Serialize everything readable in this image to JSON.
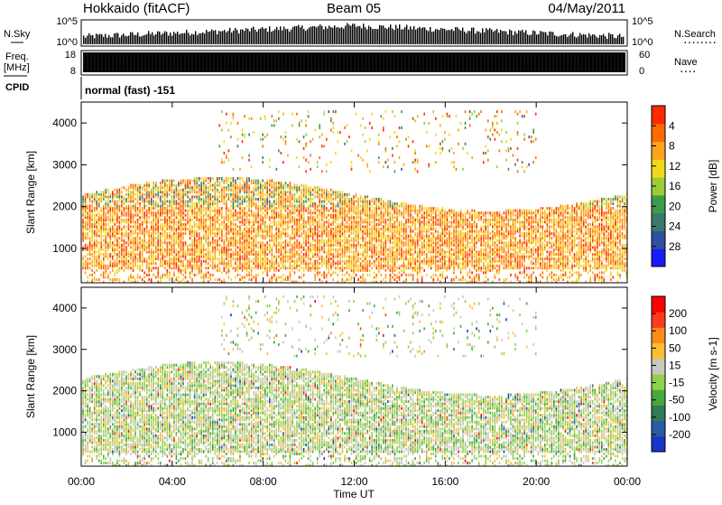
{
  "header": {
    "radar_title": "Hokkaido (fitACF)",
    "beam": "Beam 05",
    "date": "04/May/2011"
  },
  "side_labels": {
    "nsky": "N.Sky",
    "freq_line1": "Freq.",
    "freq_line2": "[MHz]",
    "cpid": "CPID",
    "nsearch": "N.Search",
    "nsearch_dots": "........",
    "nave": "Nave",
    "nave_dots": "...."
  },
  "noise_panel": {
    "left_ticks": [
      "10^5",
      "10^0"
    ],
    "right_ticks": [
      "10^5",
      "10^0"
    ]
  },
  "freq_panel": {
    "left_ticks": [
      "18",
      "8"
    ],
    "right_ticks": [
      "60",
      "0"
    ]
  },
  "cpid_text": "normal (fast) -151",
  "chart_data": [
    {
      "type": "heatmap",
      "name": "power",
      "ylabel": "Slant Range [km]",
      "xlabel": "Time UT",
      "x_ticks": [
        "00:00",
        "04:00",
        "08:00",
        "12:00",
        "16:00",
        "20:00",
        "00:00"
      ],
      "y_ticks": [
        "1000",
        "2000",
        "3000",
        "4000"
      ],
      "xlim_hours": [
        0,
        24
      ],
      "ylim_km": [
        180,
        4500
      ],
      "colorbar": {
        "label": "Power [dB]",
        "ticks": [
          "4",
          "8",
          "12",
          "16",
          "20",
          "24",
          "28"
        ],
        "colors": [
          "#1a1aff",
          "#2f4fa0",
          "#3b7a6a",
          "#3f9a4a",
          "#9ccc33",
          "#f0d81a",
          "#ffa41a",
          "#ff6a00",
          "#ff2a00"
        ]
      }
    },
    {
      "type": "heatmap",
      "name": "velocity",
      "ylabel": "Slant Range [km]",
      "xlabel": "Time UT",
      "x_ticks": [
        "00:00",
        "04:00",
        "08:00",
        "12:00",
        "16:00",
        "20:00",
        "00:00"
      ],
      "y_ticks": [
        "1000",
        "2000",
        "3000",
        "4000"
      ],
      "xlim_hours": [
        0,
        24
      ],
      "ylim_km": [
        180,
        4500
      ],
      "colorbar": {
        "label": "Velocity [m s-1]",
        "ticks": [
          "200",
          "100",
          "50",
          "15",
          "-15",
          "-50",
          "-100",
          "-200"
        ],
        "colors": [
          "#1a33c8",
          "#2a5aa6",
          "#2f7a58",
          "#48a83c",
          "#8fd24a",
          "#c8c8c0",
          "#ffbd33",
          "#ff8c1a",
          "#ff3a1a",
          "#ff0000"
        ]
      }
    }
  ],
  "x_axis_title": "Time UT"
}
